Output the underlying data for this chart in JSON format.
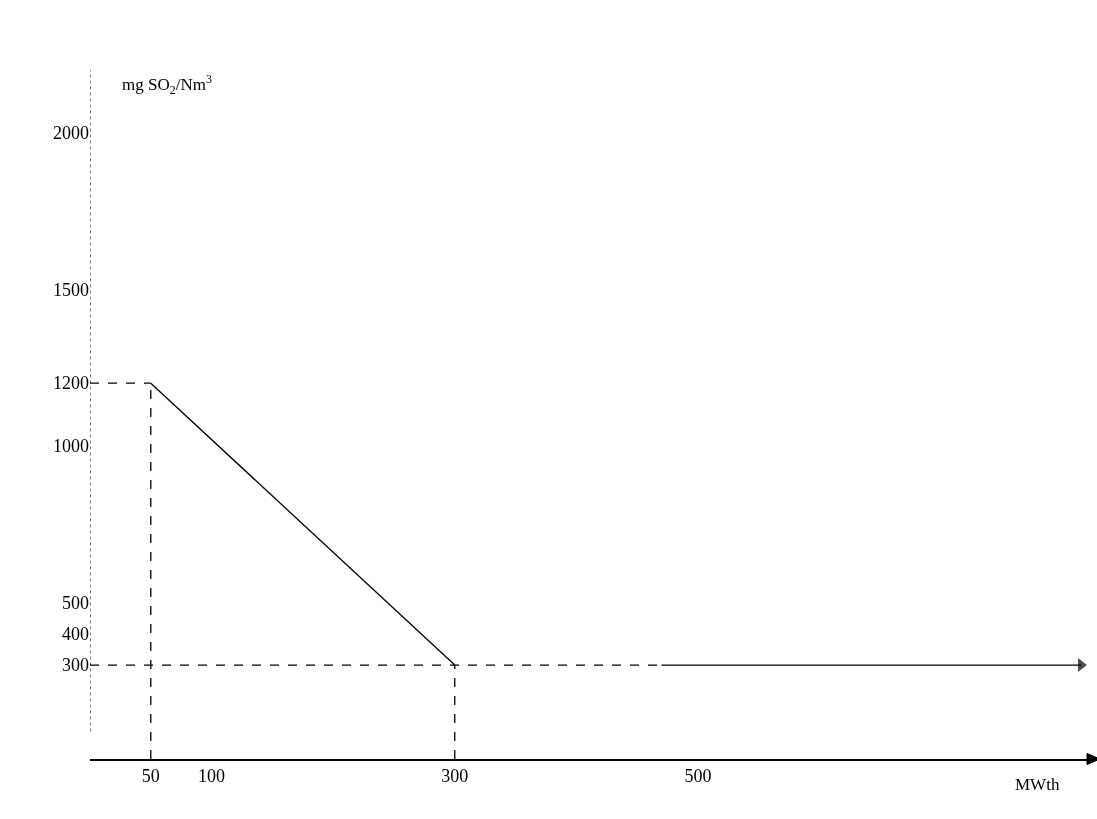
{
  "chart_data": {
    "type": "line",
    "xlabel": "MWth",
    "ylabel": "mg SO$_{2}$/Nm$^{3}$",
    "series": [
      {
        "color": "#000000",
        "x": [
          50,
          300
        ],
        "values": [
          1200,
          300
        ],
        "line_style": "solid"
      },
      {
        "color": "#000000",
        "x": [
          470,
          815
        ],
        "values": [
          300,
          300
        ],
        "line_style": "solid"
      },
      {
        "color": "#000000",
        "x": [
          0,
          50
        ],
        "values": [
          1200,
          1200
        ],
        "line_style": "dashed"
      },
      {
        "color": "#000000",
        "x": [
          50,
          50
        ],
        "values": [
          0,
          1200
        ],
        "line_style": "dashed"
      },
      {
        "color": "#000000",
        "x": [
          0,
          470
        ],
        "values": [
          300,
          300
        ],
        "line_style": "dashed"
      },
      {
        "color": "#000000",
        "x": [
          300,
          300
        ],
        "values": [
          0,
          300
        ],
        "line_style": "dashed"
      }
    ],
    "xlim": [
      0,
      820
    ],
    "ylim": [
      0,
      2200
    ],
    "xticks": [
      50,
      100,
      300,
      500
    ],
    "yticks": [
      300,
      400,
      500,
      1000,
      1200,
      1500,
      2000
    ]
  }
}
